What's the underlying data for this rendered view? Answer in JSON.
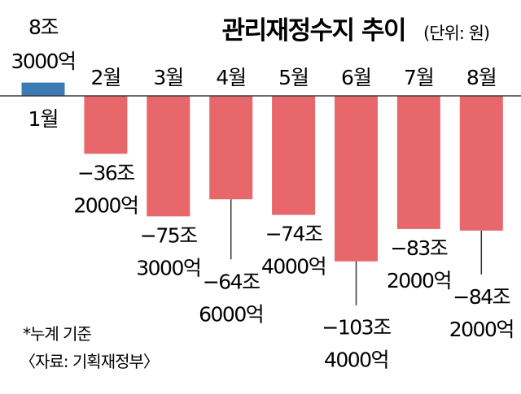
{
  "chart_data": {
    "type": "bar",
    "title": "관리재정수지 추이",
    "unit_label": "(단위: 원)",
    "categories": [
      "1월",
      "2월",
      "3월",
      "4월",
      "5월",
      "6월",
      "7월",
      "8월"
    ],
    "values_trillion_won": [
      8.3,
      -36.2,
      -75.3,
      -64.6,
      -74.4,
      -103.4,
      -83.2,
      -84.2
    ],
    "value_labels": [
      [
        "8조",
        "3000억"
      ],
      [
        "−36조",
        "2000억"
      ],
      [
        "−75조",
        "3000억"
      ],
      [
        "−64조",
        "6000억"
      ],
      [
        "−74조",
        "4000억"
      ],
      [
        "−103조",
        "4000억"
      ],
      [
        "−83조",
        "2000억"
      ],
      [
        "−84조",
        "2000억"
      ]
    ],
    "colors": {
      "positive": "#3d7bb5",
      "negative": "#e8676b",
      "axis": "#3a3a3a"
    },
    "grid": false
  },
  "notes": {
    "cumulative": "*누계 기준",
    "source": "〈자료: 기획재정부〉"
  }
}
